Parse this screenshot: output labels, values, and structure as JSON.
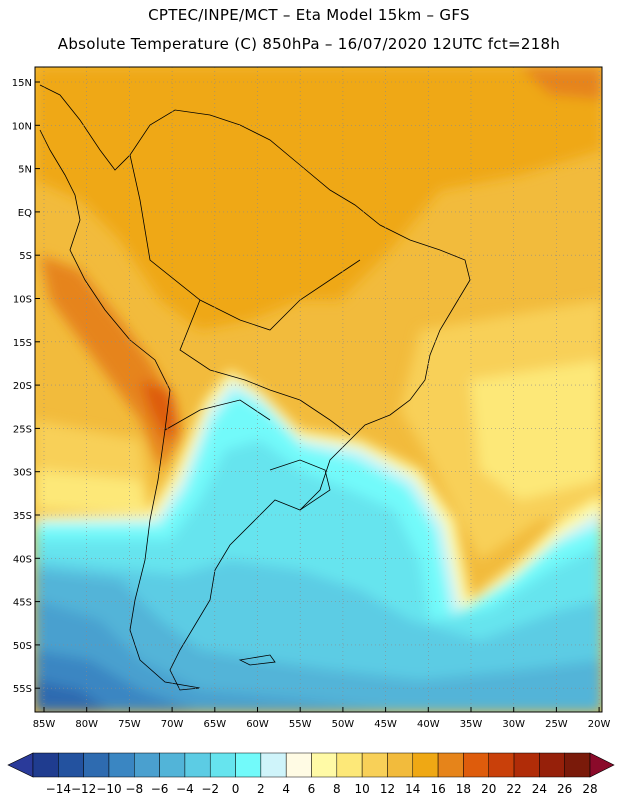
{
  "header": {
    "line1": "CPTEC/INPE/MCT –  Eta Model 15km – GFS",
    "line2": "Absolute Temperature (C) 850hPa – 16/07/2020 12UTC fct=218h"
  },
  "map": {
    "lat_labels": [
      "15N",
      "10N",
      "5N",
      "EQ",
      "5S",
      "10S",
      "15S",
      "20S",
      "25S",
      "30S",
      "35S",
      "40S",
      "45S",
      "50S",
      "55S"
    ],
    "lon_labels": [
      "85W",
      "80W",
      "75W",
      "70W",
      "65W",
      "60W",
      "55W",
      "50W",
      "45W",
      "40W",
      "35W",
      "30W",
      "25W",
      "20W"
    ]
  },
  "colorbar": {
    "labels": [
      "-14",
      "-12",
      "-10",
      "-8",
      "-6",
      "-4",
      "-2",
      "0",
      "2",
      "4",
      "6",
      "8",
      "10",
      "12",
      "14",
      "16",
      "18",
      "20",
      "22",
      "24",
      "26",
      "28"
    ],
    "colors": [
      "#1f3c8f",
      "#23529f",
      "#2e6bb0",
      "#3a86c2",
      "#4aa0cf",
      "#52b4d8",
      "#5ccce4",
      "#66e4ee",
      "#72fafa",
      "#cff4fa",
      "#fffbe4",
      "#fffaa6",
      "#fde878",
      "#f8d058",
      "#f2bb3c",
      "#efa814",
      "#e6841a",
      "#de5c0c",
      "#c9400a",
      "#b02c08",
      "#96200a",
      "#7a1a0a"
    ],
    "under_color": "#2a3a9a",
    "over_color": "#8a0a2a"
  }
}
